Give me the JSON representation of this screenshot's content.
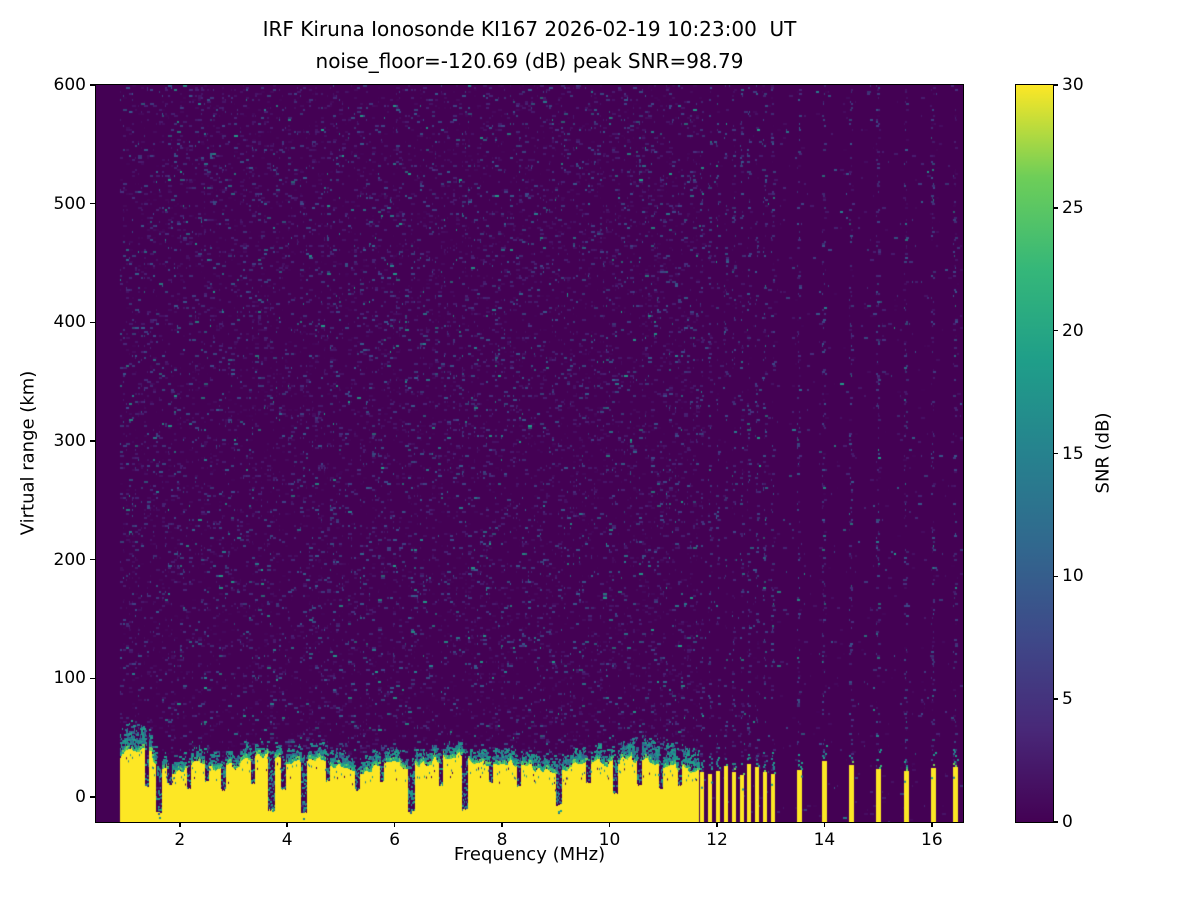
{
  "chart_data": {
    "type": "heatmap",
    "title": "IRF Kiruna Ionosonde KI167 2026-02-19 10:23:00  UT",
    "subtitle": "noise_floor=-120.69 (dB) peak SNR=98.79",
    "station": "IRF Kiruna Ionosonde KI167",
    "timestamp_ut": "2026-02-19 10:23:00",
    "noise_floor_db": -120.69,
    "peak_snr_db": 98.79,
    "xlabel": "Frequency (MHz)",
    "ylabel": "Virtual range (km)",
    "xlim": [
      0.44,
      16.58
    ],
    "ylim": [
      -21,
      600
    ],
    "xticks": [
      2,
      4,
      6,
      8,
      10,
      12,
      14,
      16
    ],
    "yticks": [
      0,
      100,
      200,
      300,
      400,
      500,
      600
    ],
    "grid": false,
    "legend": "none",
    "colorbar": {
      "label": "SNR (dB)",
      "min": 0,
      "max": 30,
      "ticks": [
        0,
        5,
        10,
        15,
        20,
        25,
        30
      ],
      "colormap": "viridis",
      "position": "right"
    },
    "colors": {
      "background": "#440154",
      "saturated": "#fde725",
      "viridis_stops": [
        [
          0,
          "#440154"
        ],
        [
          0.125,
          "#482878"
        ],
        [
          0.25,
          "#3e4989"
        ],
        [
          0.375,
          "#31688e"
        ],
        [
          0.5,
          "#26828e"
        ],
        [
          0.625,
          "#1f9e89"
        ],
        [
          0.75,
          "#35b779"
        ],
        [
          0.875,
          "#6ece58"
        ],
        [
          1,
          "#fde725"
        ]
      ],
      "noise_faint": [
        "#45065a",
        "#470d60",
        "#471366",
        "#481c6e",
        "#482475"
      ],
      "noise_medium": [
        "#46327e",
        "#3e4989",
        "#375a8c"
      ],
      "noise_bright": [
        "#31688e",
        "#26828e",
        "#1f9e89"
      ],
      "band_transition_green": [
        "#6ece58",
        "#35b779",
        "#1f9e89"
      ],
      "band_transition_teal": [
        "#26828e",
        "#31688e",
        "#1f9e89",
        "#21918c"
      ]
    },
    "features": {
      "no_data_below_mhz": 0.9,
      "clutter_band": {
        "start_mhz": 0.9,
        "end_mhz": 11.65,
        "top_km_typical": 28,
        "transition_thickness_km": 16
      },
      "band_notches": [
        [
          1.38,
          0.04,
          8
        ],
        [
          1.6,
          0.06,
          -14
        ],
        [
          1.8,
          0.04,
          10
        ],
        [
          2.16,
          0.04,
          6
        ],
        [
          2.5,
          0.04,
          12
        ],
        [
          2.8,
          0.05,
          5
        ],
        [
          3.35,
          0.04,
          10
        ],
        [
          3.7,
          0.06,
          -12
        ],
        [
          3.92,
          0.04,
          6
        ],
        [
          4.3,
          0.06,
          -14
        ],
        [
          4.75,
          0.04,
          12
        ],
        [
          5.3,
          0.05,
          5
        ],
        [
          5.75,
          0.04,
          12
        ],
        [
          6.3,
          0.06,
          -13
        ],
        [
          6.85,
          0.04,
          9
        ],
        [
          7.3,
          0.06,
          -12
        ],
        [
          7.78,
          0.04,
          11
        ],
        [
          8.3,
          0.04,
          8
        ],
        [
          9.05,
          0.05,
          -8
        ],
        [
          9.6,
          0.04,
          11
        ],
        [
          10.1,
          0.05,
          2
        ],
        [
          10.55,
          0.04,
          9
        ],
        [
          10.95,
          0.04,
          6
        ],
        [
          11.3,
          0.04,
          8
        ]
      ],
      "pulsed_bars_mhz": [
        11.72,
        11.87,
        12.02,
        12.17,
        12.32,
        12.46,
        12.6,
        12.74,
        12.89,
        13.04,
        13.52,
        14.0,
        14.5,
        15.0,
        15.52,
        16.02,
        16.44
      ],
      "sparse_bars_from_mhz": 13.2,
      "bar_width_mhz": 0.07,
      "rfi_stripes_follow_bars": true,
      "noise_density_left": 0.16,
      "noise_density_right": 0.022,
      "stripe_density": 0.26
    },
    "render_seed": 20260219
  }
}
